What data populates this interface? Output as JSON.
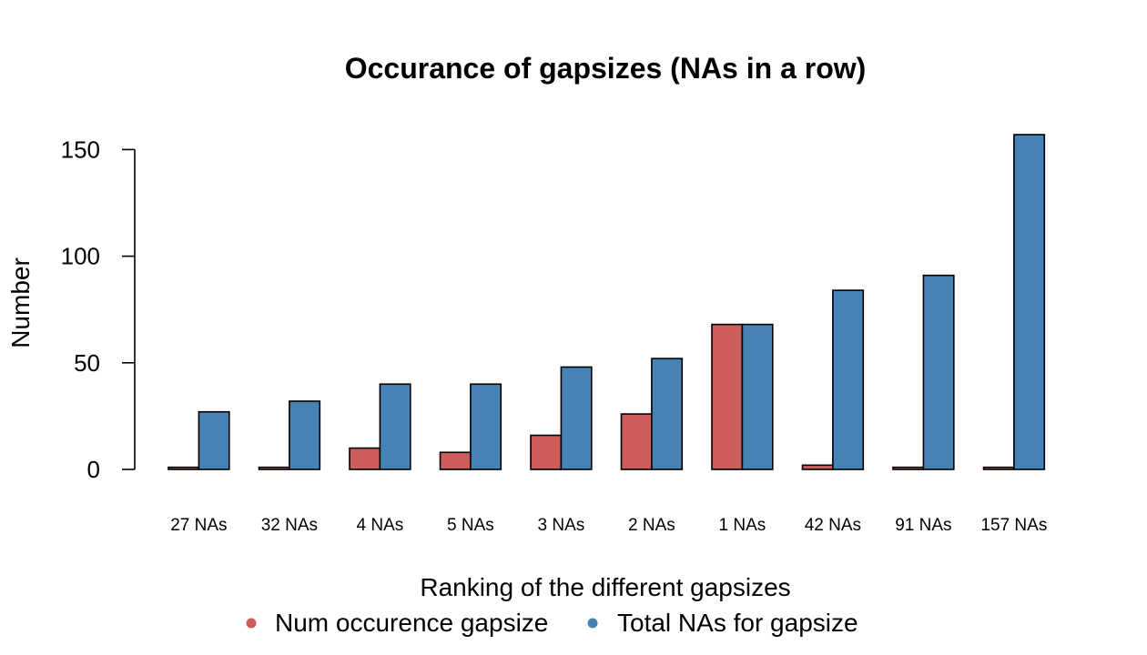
{
  "chart_data": {
    "type": "bar",
    "title": "Occurance of  gapsizes (NAs in a row)",
    "xlabel": "Ranking of the different gapsizes",
    "ylabel": "Number",
    "categories": [
      "27 NAs",
      "32 NAs",
      "4 NAs",
      "5 NAs",
      "3 NAs",
      "2 NAs",
      "1 NAs",
      "42 NAs",
      "91 NAs",
      "157 NAs"
    ],
    "series": [
      {
        "name": "Num occurence gapsize",
        "color": "#CD5C5C",
        "values": [
          1,
          1,
          10,
          8,
          16,
          26,
          68,
          2,
          1,
          1
        ]
      },
      {
        "name": "Total NAs for gapsize",
        "color": "#4682B4",
        "values": [
          27,
          32,
          40,
          40,
          48,
          52,
          68,
          84,
          91,
          157
        ]
      }
    ],
    "yticks": [
      0,
      50,
      100,
      150
    ],
    "ylim": [
      0,
      157
    ],
    "grid": false,
    "legend": "bottom"
  }
}
